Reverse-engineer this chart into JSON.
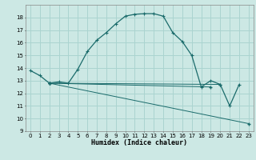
{
  "xlabel": "Humidex (Indice chaleur)",
  "bg_color": "#cce8e4",
  "grid_color": "#aad4d0",
  "line_color": "#1a6b6b",
  "xlim": [
    -0.5,
    23.5
  ],
  "ylim": [
    9,
    19
  ],
  "yticks": [
    9,
    10,
    11,
    12,
    13,
    14,
    15,
    16,
    17,
    18
  ],
  "xticks": [
    0,
    1,
    2,
    3,
    4,
    5,
    6,
    7,
    8,
    9,
    10,
    11,
    12,
    13,
    14,
    15,
    16,
    17,
    18,
    19,
    20,
    21,
    22,
    23
  ],
  "series": [
    {
      "x": [
        0,
        1,
        2,
        3,
        4,
        5,
        6,
        7,
        8,
        9,
        10,
        11,
        12,
        13,
        14,
        15,
        16,
        17,
        18,
        19,
        20,
        21,
        22
      ],
      "y": [
        13.8,
        13.4,
        12.8,
        12.9,
        12.8,
        13.9,
        15.3,
        16.2,
        16.8,
        17.5,
        18.1,
        18.25,
        18.3,
        18.3,
        18.1,
        16.8,
        16.1,
        15.0,
        12.5,
        13.0,
        12.7,
        11.0,
        12.7
      ]
    },
    {
      "x": [
        2,
        23
      ],
      "y": [
        12.8,
        9.6
      ]
    },
    {
      "x": [
        2,
        19
      ],
      "y": [
        12.8,
        12.5
      ]
    },
    {
      "x": [
        2,
        20
      ],
      "y": [
        12.8,
        12.7
      ]
    }
  ]
}
